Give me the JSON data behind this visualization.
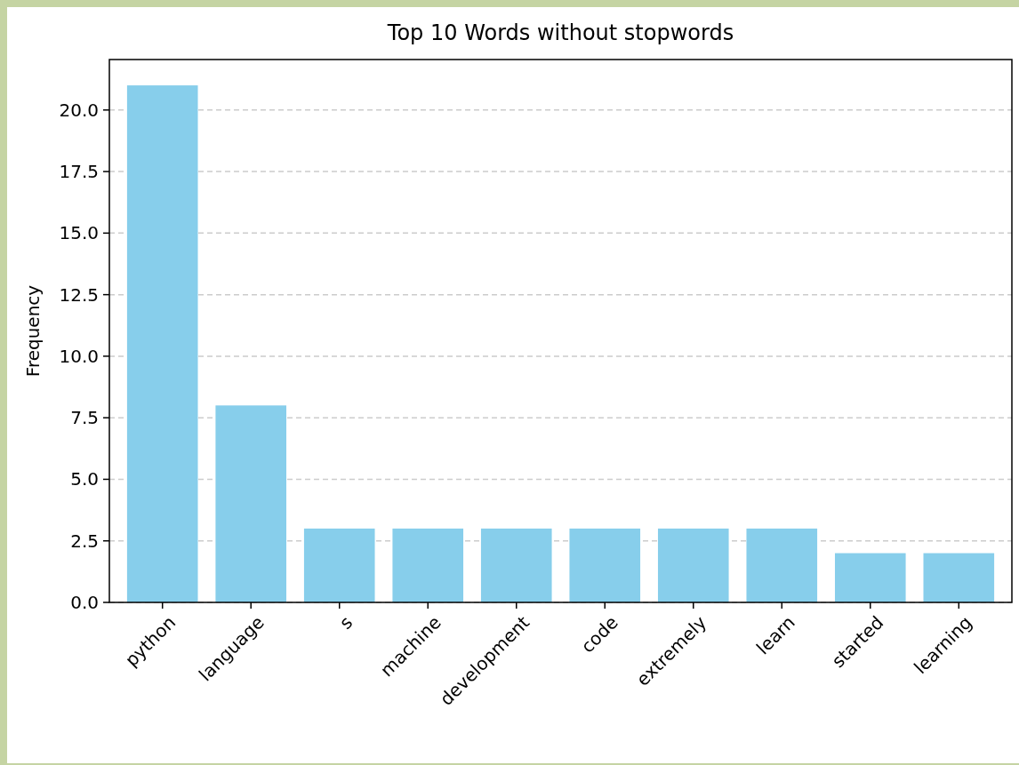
{
  "chart_data": {
    "type": "bar",
    "title": "Top 10 Words without stopwords",
    "ylabel": "Frequency",
    "categories": [
      "python",
      "language",
      "s",
      "machine",
      "development",
      "code",
      "extremely",
      "learn",
      "started",
      "learning"
    ],
    "values": [
      21,
      8,
      3,
      3,
      3,
      3,
      3,
      3,
      2,
      2
    ],
    "color": "#87ceeb",
    "ylim": [
      0,
      22.05
    ],
    "yticks": [
      {
        "value": 0,
        "label": "0.0"
      },
      {
        "value": 2.5,
        "label": "2.5"
      },
      {
        "value": 5,
        "label": "5.0"
      },
      {
        "value": 7.5,
        "label": "7.5"
      },
      {
        "value": 10,
        "label": "10.0"
      },
      {
        "value": 12.5,
        "label": "12.5"
      },
      {
        "value": 15,
        "label": "15.0"
      },
      {
        "value": 17.5,
        "label": "17.5"
      },
      {
        "value": 20,
        "label": "20.0"
      }
    ],
    "grid": "y",
    "line_style": "dashed"
  }
}
